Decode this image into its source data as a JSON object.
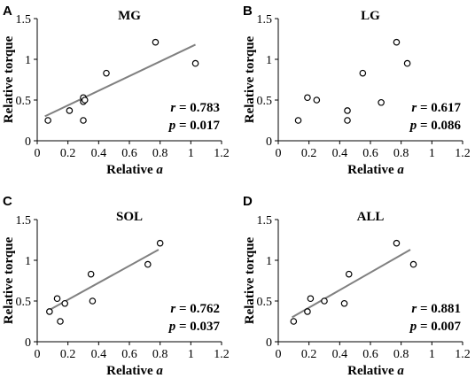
{
  "chart_data": [
    {
      "type": "scatter",
      "panel_label": "A",
      "title": "MG",
      "xlabel_prefix": "Relative ",
      "xlabel_var": "a",
      "ylabel": "Relative torque",
      "xlim": [
        0,
        1.2
      ],
      "ylim": [
        0,
        1.5
      ],
      "xticks": [
        "0",
        "0.2",
        "0.4",
        "0.6",
        "0.8",
        "1",
        "1.2"
      ],
      "yticks": [
        "0",
        "0.5",
        "1",
        "1.5"
      ],
      "points": [
        [
          0.07,
          0.25
        ],
        [
          0.21,
          0.37
        ],
        [
          0.3,
          0.25
        ],
        [
          0.3,
          0.48
        ],
        [
          0.3,
          0.53
        ],
        [
          0.31,
          0.5
        ],
        [
          0.45,
          0.83
        ],
        [
          0.77,
          1.21
        ],
        [
          1.03,
          0.95
        ]
      ],
      "fit": [
        [
          0.05,
          0.3
        ],
        [
          1.03,
          1.18
        ]
      ],
      "r_text": "= 0.783",
      "p_text": "= 0.017",
      "grid": false
    },
    {
      "type": "scatter",
      "panel_label": "B",
      "title": "LG",
      "xlabel_prefix": "Relative ",
      "xlabel_var": "a",
      "ylabel": "Relative torque",
      "xlim": [
        0,
        1.2
      ],
      "ylim": [
        0,
        1.5
      ],
      "xticks": [
        "0",
        "0.2",
        "0.4",
        "0.6",
        "0.8",
        "1",
        "1.2"
      ],
      "yticks": [
        "0",
        "0.5",
        "1",
        "1.5"
      ],
      "points": [
        [
          0.13,
          0.25
        ],
        [
          0.19,
          0.53
        ],
        [
          0.25,
          0.5
        ],
        [
          0.45,
          0.25
        ],
        [
          0.45,
          0.37
        ],
        [
          0.55,
          0.83
        ],
        [
          0.67,
          0.47
        ],
        [
          0.77,
          1.21
        ],
        [
          0.84,
          0.95
        ]
      ],
      "fit": null,
      "r_text": "= 0.617",
      "p_text": "= 0.086",
      "grid": false
    },
    {
      "type": "scatter",
      "panel_label": "C",
      "title": "SOL",
      "xlabel_prefix": "Relative ",
      "xlabel_var": "a",
      "ylabel": "Relative torque",
      "xlim": [
        0,
        1.2
      ],
      "ylim": [
        0,
        1.5
      ],
      "xticks": [
        "0",
        "0.2",
        "0.4",
        "0.6",
        "0.8",
        "1",
        "1.2"
      ],
      "yticks": [
        "0",
        "0.5",
        "1",
        "1.5"
      ],
      "points": [
        [
          0.08,
          0.37
        ],
        [
          0.13,
          0.53
        ],
        [
          0.15,
          0.25
        ],
        [
          0.18,
          0.47
        ],
        [
          0.35,
          0.83
        ],
        [
          0.36,
          0.5
        ],
        [
          0.72,
          0.95
        ],
        [
          0.8,
          1.21
        ]
      ],
      "fit": [
        [
          0.07,
          0.38
        ],
        [
          0.79,
          1.13
        ]
      ],
      "r_text": "= 0.762",
      "p_text": "= 0.037",
      "grid": false
    },
    {
      "type": "scatter",
      "panel_label": "D",
      "title": "ALL",
      "xlabel_prefix": "Relative ",
      "xlabel_var": "a",
      "ylabel": "Relative torque",
      "xlim": [
        0,
        1.2
      ],
      "ylim": [
        0,
        1.5
      ],
      "xticks": [
        "0",
        "0.2",
        "0.4",
        "0.6",
        "0.8",
        "1",
        "1.2"
      ],
      "yticks": [
        "0",
        "0.5",
        "1",
        "1.5"
      ],
      "points": [
        [
          0.1,
          0.25
        ],
        [
          0.19,
          0.37
        ],
        [
          0.21,
          0.53
        ],
        [
          0.3,
          0.5
        ],
        [
          0.43,
          0.47
        ],
        [
          0.46,
          0.83
        ],
        [
          0.77,
          1.21
        ],
        [
          0.88,
          0.95
        ]
      ],
      "fit": [
        [
          0.09,
          0.3
        ],
        [
          0.86,
          1.13
        ]
      ],
      "r_text": "= 0.881",
      "p_text": "= 0.007",
      "grid": false
    }
  ]
}
